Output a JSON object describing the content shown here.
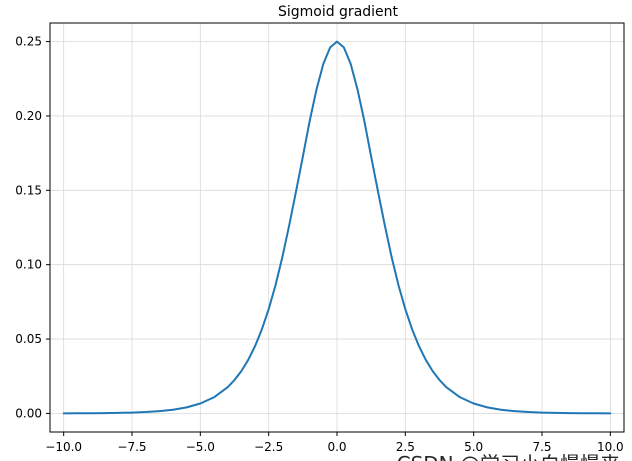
{
  "chart_data": {
    "type": "line",
    "title": "Sigmoid gradient",
    "xlabel": "",
    "ylabel": "",
    "xlim": [
      -10.5,
      10.5
    ],
    "ylim": [
      -0.0125,
      0.2625
    ],
    "grid": true,
    "x_ticks": [
      -10.0,
      -7.5,
      -5.0,
      -2.5,
      0.0,
      2.5,
      5.0,
      7.5,
      10.0
    ],
    "x_tick_labels": [
      "−10.0",
      "−7.5",
      "−5.0",
      "−2.5",
      "0.0",
      "2.5",
      "5.0",
      "7.5",
      "10.0"
    ],
    "y_ticks": [
      0.0,
      0.05,
      0.1,
      0.15,
      0.2,
      0.25
    ],
    "y_tick_labels": [
      "0.00",
      "0.05",
      "0.10",
      "0.15",
      "0.20",
      "0.25"
    ],
    "series": [
      {
        "color": "#1f77b4",
        "x": [
          -10.0,
          -9.5,
          -9.0,
          -8.5,
          -8.0,
          -7.5,
          -7.0,
          -6.5,
          -6.0,
          -5.5,
          -5.0,
          -4.5,
          -4.0,
          -3.75,
          -3.5,
          -3.25,
          -3.0,
          -2.75,
          -2.5,
          -2.25,
          -2.0,
          -1.75,
          -1.5,
          -1.25,
          -1.0,
          -0.75,
          -0.5,
          -0.25,
          0.0,
          0.25,
          0.5,
          0.75,
          1.0,
          1.25,
          1.5,
          1.75,
          2.0,
          2.25,
          2.5,
          2.75,
          3.0,
          3.25,
          3.5,
          3.75,
          4.0,
          4.5,
          5.0,
          5.5,
          6.0,
          6.5,
          7.0,
          7.5,
          8.0,
          8.5,
          9.0,
          9.5,
          10.0
        ],
        "values": [
          5e-05,
          7e-05,
          0.00012,
          0.0002,
          0.00034,
          0.00055,
          0.00091,
          0.0015,
          0.00247,
          0.00406,
          0.00665,
          0.01086,
          0.01766,
          0.02245,
          0.02845,
          0.03594,
          0.04518,
          0.05646,
          0.07007,
          0.08615,
          0.10499,
          0.12637,
          0.14915,
          0.17262,
          0.19661,
          0.21781,
          0.235,
          0.24613,
          0.25,
          0.24613,
          0.235,
          0.21781,
          0.19661,
          0.17262,
          0.14915,
          0.12637,
          0.10499,
          0.08615,
          0.07007,
          0.05646,
          0.04518,
          0.03594,
          0.02845,
          0.02245,
          0.01766,
          0.01086,
          0.00665,
          0.00406,
          0.00247,
          0.0015,
          0.00091,
          0.00055,
          0.00034,
          0.0002,
          0.00012,
          7e-05,
          5e-05
        ]
      }
    ]
  },
  "colors": {
    "line": "#1f77b4",
    "grid": "#d9d9d9",
    "axes": "#000000",
    "background": "#ffffff"
  },
  "watermark": "CSDN @学习小白慢慢来"
}
